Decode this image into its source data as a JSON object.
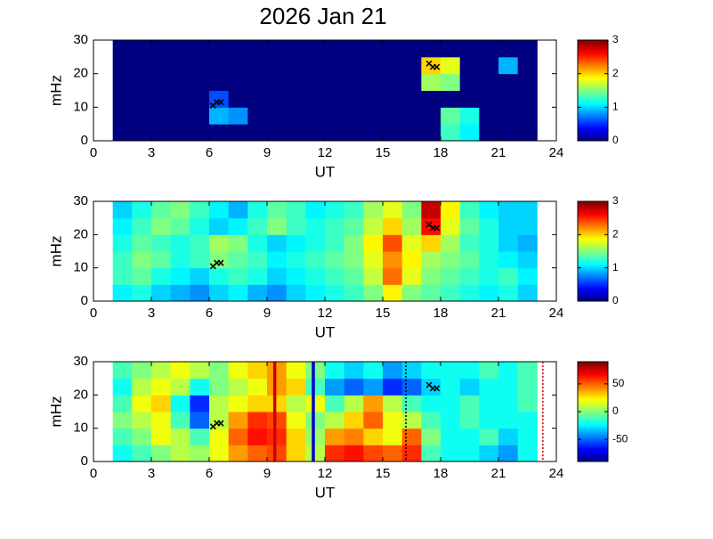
{
  "chart_data": [
    {
      "type": "heatmap",
      "title": "2026 Jan 21",
      "xlabel": "UT",
      "ylabel": "mHz",
      "xlim": [
        0,
        24
      ],
      "xticks": [
        0,
        3,
        6,
        9,
        12,
        15,
        18,
        21,
        24
      ],
      "ylim": [
        0,
        30
      ],
      "yticks": [
        0,
        10,
        20,
        30
      ],
      "xbins": [
        1,
        2,
        3,
        4,
        5,
        6,
        7,
        8,
        9,
        10,
        11,
        12,
        13,
        14,
        15,
        16,
        17,
        18,
        19,
        20,
        21,
        22,
        23
      ],
      "ybins": [
        0,
        5,
        10,
        15,
        20,
        25,
        30
      ],
      "z": [
        [
          0,
          0,
          0,
          0,
          0,
          0,
          0,
          0,
          0,
          0,
          0,
          0,
          0,
          0,
          0,
          0,
          0,
          1.3,
          1.1,
          0,
          0,
          0
        ],
        [
          0,
          0,
          0,
          0,
          0,
          0.9,
          0.8,
          0,
          0,
          0,
          0,
          0,
          0,
          0,
          0,
          0,
          0,
          1.4,
          1.2,
          0,
          0,
          0
        ],
        [
          0,
          0,
          0,
          0,
          0,
          0.6,
          0,
          0,
          0,
          0,
          0,
          0,
          0,
          0,
          0,
          0,
          0,
          0,
          0,
          0,
          0,
          0
        ],
        [
          0,
          0,
          0,
          0,
          0,
          0,
          0,
          0,
          0,
          0,
          0,
          0,
          0,
          0,
          0,
          0,
          1.6,
          1.5,
          0,
          0,
          0,
          0
        ],
        [
          0,
          0,
          0,
          0,
          0,
          0,
          0,
          0,
          0,
          0,
          0,
          0,
          0,
          0,
          0,
          0,
          2.0,
          1.8,
          0,
          0,
          0.9,
          0
        ],
        [
          0,
          0,
          0,
          0,
          0,
          0,
          0,
          0,
          0,
          0,
          0,
          0,
          0,
          0,
          0,
          0,
          0,
          0,
          0,
          0,
          0,
          0
        ]
      ],
      "colormap": "jet",
      "clim": [
        0,
        3
      ],
      "cticks": [
        0,
        1,
        2,
        3
      ],
      "markers": {
        "x": [
          6.2,
          6.4,
          6.6,
          17.4,
          17.6,
          17.8
        ],
        "y": [
          10.5,
          11.5,
          11.5,
          23,
          22,
          22
        ],
        "color": "#000000"
      }
    },
    {
      "type": "heatmap",
      "xlabel": "UT",
      "ylabel": "mHz",
      "xlim": [
        0,
        24
      ],
      "xticks": [
        0,
        3,
        6,
        9,
        12,
        15,
        18,
        21,
        24
      ],
      "ylim": [
        0,
        30
      ],
      "yticks": [
        0,
        10,
        20,
        30
      ],
      "xbins": [
        1,
        2,
        3,
        4,
        5,
        6,
        7,
        8,
        9,
        10,
        11,
        12,
        13,
        14,
        15,
        16,
        17,
        18,
        19,
        20,
        21,
        22,
        23
      ],
      "ybins": [
        0,
        5,
        10,
        15,
        20,
        25,
        30
      ],
      "z": [
        [
          1.1,
          1.2,
          1.0,
          0.9,
          0.8,
          1.0,
          1.1,
          0.9,
          0.8,
          1.0,
          1.1,
          1.2,
          1.3,
          1.5,
          1.9,
          1.5,
          1.4,
          1.3,
          1.2,
          1.1,
          1.2,
          1.0
        ],
        [
          1.3,
          1.4,
          1.2,
          1.1,
          1.0,
          1.2,
          1.3,
          1.2,
          1.0,
          1.1,
          1.2,
          1.3,
          1.4,
          1.7,
          2.3,
          1.8,
          1.5,
          1.4,
          1.3,
          1.2,
          1.3,
          1.1
        ],
        [
          1.3,
          1.5,
          1.4,
          1.2,
          1.3,
          1.5,
          1.4,
          1.3,
          1.1,
          1.2,
          1.3,
          1.4,
          1.5,
          1.8,
          2.2,
          1.9,
          1.6,
          1.5,
          1.4,
          1.2,
          1.1,
          1.0
        ],
        [
          1.2,
          1.4,
          1.3,
          1.2,
          1.3,
          1.6,
          1.5,
          1.2,
          1.0,
          1.1,
          1.2,
          1.3,
          1.5,
          1.9,
          2.4,
          1.8,
          2.0,
          1.6,
          1.3,
          1.2,
          1.0,
          0.9
        ],
        [
          1.1,
          1.3,
          1.5,
          1.4,
          1.2,
          1.0,
          1.1,
          1.3,
          1.5,
          1.3,
          1.2,
          1.3,
          1.4,
          1.7,
          2.0,
          1.6,
          2.6,
          1.8,
          1.4,
          1.2,
          1.0,
          1.0
        ],
        [
          1.0,
          1.2,
          1.4,
          1.5,
          1.3,
          1.1,
          0.9,
          1.2,
          1.4,
          1.3,
          1.1,
          1.2,
          1.3,
          1.6,
          1.8,
          1.5,
          2.8,
          1.9,
          1.3,
          1.1,
          1.0,
          1.0
        ]
      ],
      "colormap": "jet",
      "clim": [
        0,
        3
      ],
      "cticks": [
        0,
        1,
        2,
        3
      ],
      "markers": {
        "x": [
          6.2,
          6.4,
          6.6,
          17.4,
          17.6,
          17.8
        ],
        "y": [
          10.5,
          11.5,
          11.5,
          23,
          22,
          22
        ],
        "color": "#000000"
      }
    },
    {
      "type": "heatmap",
      "xlabel": "UT",
      "ylabel": "mHz",
      "xlim": [
        0,
        24
      ],
      "xticks": [
        0,
        3,
        6,
        9,
        12,
        15,
        18,
        21,
        24
      ],
      "ylim": [
        0,
        30
      ],
      "yticks": [
        0,
        10,
        20,
        30
      ],
      "xbins": [
        1,
        2,
        3,
        4,
        5,
        6,
        7,
        8,
        9,
        10,
        11,
        12,
        13,
        14,
        15,
        16,
        17,
        18,
        19,
        20,
        21,
        22,
        23
      ],
      "ybins": [
        0,
        5,
        10,
        15,
        20,
        25,
        30
      ],
      "z": [
        [
          -20,
          -10,
          0,
          10,
          5,
          20,
          40,
          50,
          55,
          30,
          10,
          60,
          65,
          55,
          50,
          60,
          -10,
          -20,
          -20,
          -30,
          -40,
          -20
        ],
        [
          -10,
          0,
          20,
          10,
          -10,
          20,
          50,
          65,
          60,
          30,
          5,
          40,
          45,
          30,
          20,
          50,
          0,
          -20,
          -20,
          -10,
          -30,
          -20
        ],
        [
          0,
          10,
          20,
          -10,
          -50,
          10,
          40,
          60,
          55,
          20,
          0,
          10,
          30,
          50,
          20,
          10,
          -10,
          -20,
          -10,
          -20,
          -20,
          -20
        ],
        [
          -10,
          20,
          30,
          -20,
          -60,
          10,
          20,
          30,
          30,
          10,
          20,
          -10,
          10,
          40,
          10,
          -10,
          -20,
          -20,
          -10,
          -20,
          -20,
          -10
        ],
        [
          -20,
          10,
          20,
          10,
          -20,
          0,
          10,
          20,
          40,
          30,
          -10,
          -40,
          -50,
          -40,
          -60,
          -50,
          -30,
          -20,
          -30,
          -20,
          -20,
          -10
        ],
        [
          -10,
          0,
          10,
          20,
          10,
          0,
          20,
          30,
          40,
          20,
          0,
          -20,
          -30,
          -20,
          -40,
          -30,
          -20,
          -20,
          -20,
          -10,
          -20,
          -10
        ]
      ],
      "colormap": "jet",
      "clim": [
        -90,
        90
      ],
      "cticks": [
        -50,
        0,
        50
      ],
      "markers": {
        "x": [
          6.2,
          6.4,
          6.6,
          17.4,
          17.6,
          17.8
        ],
        "y": [
          10.5,
          11.5,
          11.5,
          23,
          22,
          22
        ],
        "color": "#000000"
      },
      "vlines": [
        {
          "x": 9.4,
          "color": "#d00000",
          "style": "solid"
        },
        {
          "x": 11.4,
          "color": "#0000d0",
          "style": "solid"
        },
        {
          "x": 16.2,
          "color": "#000000",
          "style": "dotted"
        },
        {
          "x": 23.3,
          "color": "#d00000",
          "style": "dotted"
        }
      ]
    }
  ]
}
